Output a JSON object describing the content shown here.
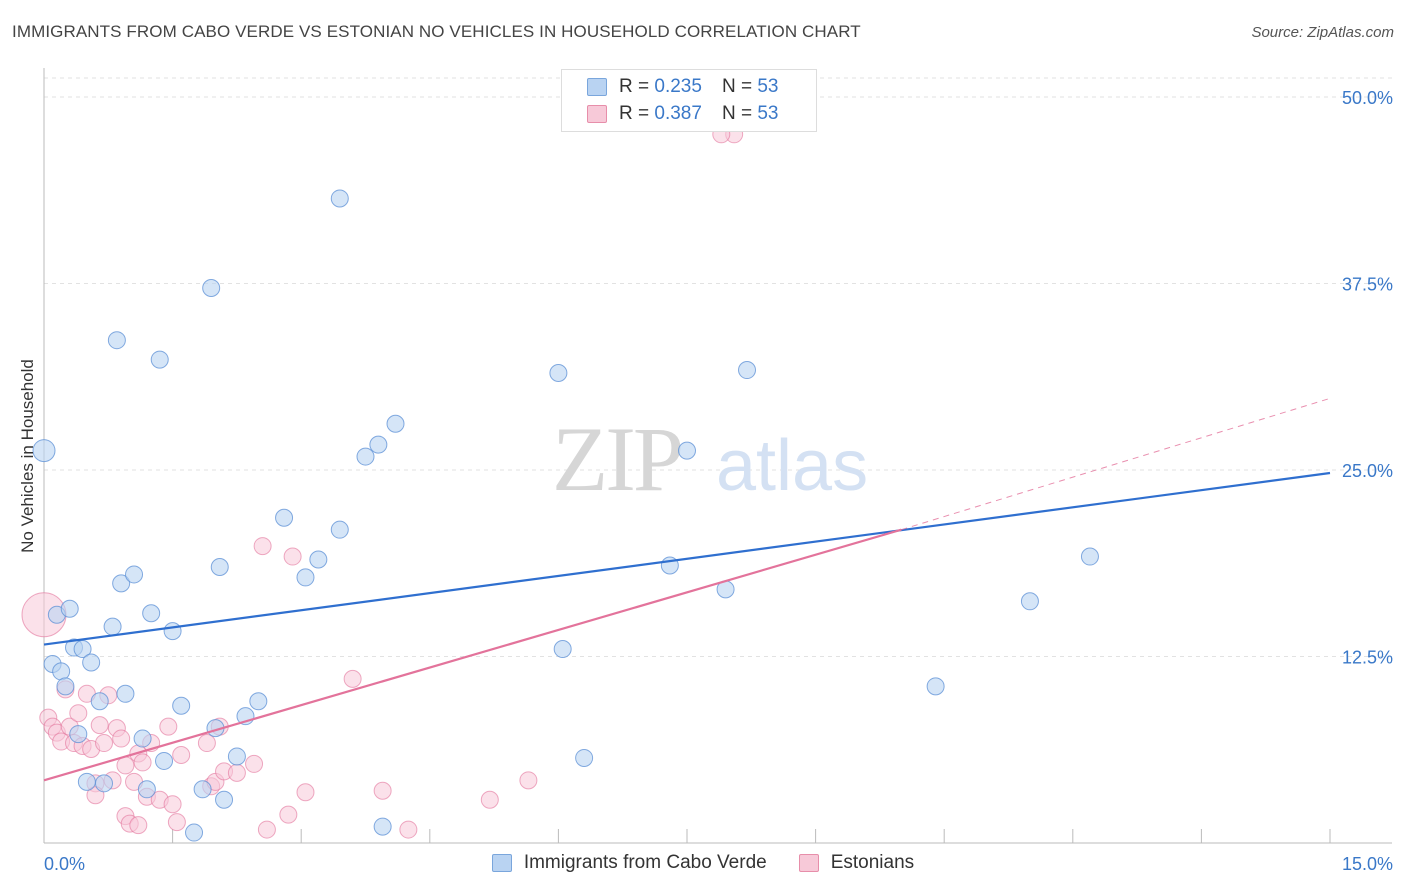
{
  "title": "IMMIGRANTS FROM CABO VERDE VS ESTONIAN NO VEHICLES IN HOUSEHOLD CORRELATION CHART",
  "source": "Source: ZipAtlas.com",
  "watermark": {
    "zip": "ZIP",
    "atlas": "atlas"
  },
  "legend": {
    "rows": [
      {
        "r_label": "R =",
        "r_value": "0.235",
        "n_label": "N =",
        "n_value": "53",
        "color": "#aecbf0",
        "border": "#7aa6dc"
      },
      {
        "r_label": "R =",
        "r_value": "0.387",
        "n_label": "N =",
        "n_value": "53",
        "color": "#f8c4d4",
        "border": "#e78eaa"
      }
    ]
  },
  "chart_data": {
    "type": "scatter",
    "title": "IMMIGRANTS FROM CABO VERDE VS ESTONIAN NO VEHICLES IN HOUSEHOLD CORRELATION CHART",
    "xlabel": "",
    "ylabel": "No Vehicles in Household",
    "xlim": [
      0,
      15
    ],
    "ylim": [
      0,
      50
    ],
    "x_tick_labels": [
      "0.0%",
      "15.0%"
    ],
    "y_tick_labels": [
      "12.5%",
      "25.0%",
      "37.5%",
      "50.0%"
    ],
    "y_ticks": [
      12.5,
      25.0,
      37.5,
      50.0
    ],
    "colors": {
      "blue": "#5b8fd6",
      "blue_fill": "#b9d3f2",
      "pink": "#e3739b",
      "pink_fill": "#f7c9d8",
      "tick_label": "#3a78c8"
    },
    "series": [
      {
        "name": "Immigrants from Cabo Verde",
        "trend": {
          "x0": 0,
          "y0": 13.3,
          "x1": 15,
          "y1": 24.8
        },
        "points": [
          [
            0.0,
            26.3
          ],
          [
            0.1,
            12.0
          ],
          [
            0.15,
            15.3
          ],
          [
            0.2,
            11.5
          ],
          [
            0.25,
            10.5
          ],
          [
            0.3,
            15.7
          ],
          [
            0.35,
            13.1
          ],
          [
            0.4,
            7.3
          ],
          [
            0.45,
            13.0
          ],
          [
            0.5,
            4.1
          ],
          [
            0.55,
            12.1
          ],
          [
            0.65,
            9.5
          ],
          [
            0.7,
            4.0
          ],
          [
            0.8,
            14.5
          ],
          [
            0.85,
            33.7
          ],
          [
            0.9,
            17.4
          ],
          [
            0.95,
            10.0
          ],
          [
            1.05,
            18.0
          ],
          [
            1.15,
            7.0
          ],
          [
            1.2,
            3.6
          ],
          [
            1.25,
            15.4
          ],
          [
            1.35,
            32.4
          ],
          [
            1.4,
            5.5
          ],
          [
            1.5,
            14.2
          ],
          [
            1.6,
            9.2
          ],
          [
            1.75,
            0.7
          ],
          [
            1.85,
            3.6
          ],
          [
            1.95,
            37.2
          ],
          [
            2.0,
            7.7
          ],
          [
            2.05,
            18.5
          ],
          [
            2.1,
            2.9
          ],
          [
            2.25,
            5.8
          ],
          [
            2.35,
            8.5
          ],
          [
            2.5,
            9.5
          ],
          [
            2.8,
            21.8
          ],
          [
            3.05,
            17.8
          ],
          [
            3.2,
            19.0
          ],
          [
            3.45,
            21.0
          ],
          [
            3.45,
            43.2
          ],
          [
            3.75,
            25.9
          ],
          [
            3.9,
            26.7
          ],
          [
            3.95,
            1.1
          ],
          [
            4.1,
            28.1
          ],
          [
            6.0,
            31.5
          ],
          [
            6.05,
            13.0
          ],
          [
            6.3,
            5.7
          ],
          [
            7.3,
            18.6
          ],
          [
            7.5,
            26.3
          ],
          [
            7.95,
            17.0
          ],
          [
            8.2,
            31.7
          ],
          [
            10.4,
            10.5
          ],
          [
            11.5,
            16.2
          ],
          [
            12.2,
            19.2
          ]
        ]
      },
      {
        "name": "Estonians",
        "trend": {
          "x0": 0,
          "y0": 4.2,
          "x1": 10.0,
          "y1": 21.0
        },
        "trend_dashed": {
          "x0": 10.0,
          "y0": 21.0,
          "x1": 15,
          "y1": 29.8
        },
        "points": [
          [
            0.0,
            15.3
          ],
          [
            0.05,
            8.4
          ],
          [
            0.1,
            7.8
          ],
          [
            0.15,
            7.4
          ],
          [
            0.2,
            6.8
          ],
          [
            0.25,
            10.3
          ],
          [
            0.3,
            7.8
          ],
          [
            0.35,
            6.7
          ],
          [
            0.4,
            8.7
          ],
          [
            0.45,
            6.5
          ],
          [
            0.5,
            10.0
          ],
          [
            0.55,
            6.3
          ],
          [
            0.6,
            4.0
          ],
          [
            0.6,
            3.2
          ],
          [
            0.65,
            7.9
          ],
          [
            0.7,
            6.7
          ],
          [
            0.75,
            9.9
          ],
          [
            0.8,
            4.2
          ],
          [
            0.85,
            7.7
          ],
          [
            0.9,
            7.0
          ],
          [
            0.95,
            5.2
          ],
          [
            0.95,
            1.8
          ],
          [
            1.0,
            1.3
          ],
          [
            1.05,
            4.1
          ],
          [
            1.1,
            1.2
          ],
          [
            1.1,
            6.0
          ],
          [
            1.15,
            5.4
          ],
          [
            1.2,
            3.1
          ],
          [
            1.25,
            6.7
          ],
          [
            1.35,
            2.9
          ],
          [
            1.45,
            7.8
          ],
          [
            1.5,
            2.6
          ],
          [
            1.55,
            1.4
          ],
          [
            1.6,
            5.9
          ],
          [
            1.9,
            6.7
          ],
          [
            1.95,
            3.8
          ],
          [
            2.0,
            4.1
          ],
          [
            2.05,
            7.8
          ],
          [
            2.1,
            4.8
          ],
          [
            2.25,
            4.7
          ],
          [
            2.45,
            5.3
          ],
          [
            2.6,
            0.9
          ],
          [
            2.55,
            19.9
          ],
          [
            2.85,
            1.9
          ],
          [
            2.9,
            19.2
          ],
          [
            3.05,
            3.4
          ],
          [
            3.6,
            11.0
          ],
          [
            3.95,
            3.5
          ],
          [
            4.25,
            0.9
          ],
          [
            5.2,
            2.9
          ],
          [
            5.65,
            4.2
          ],
          [
            8.05,
            47.5
          ],
          [
            7.9,
            47.5
          ]
        ]
      }
    ]
  }
}
